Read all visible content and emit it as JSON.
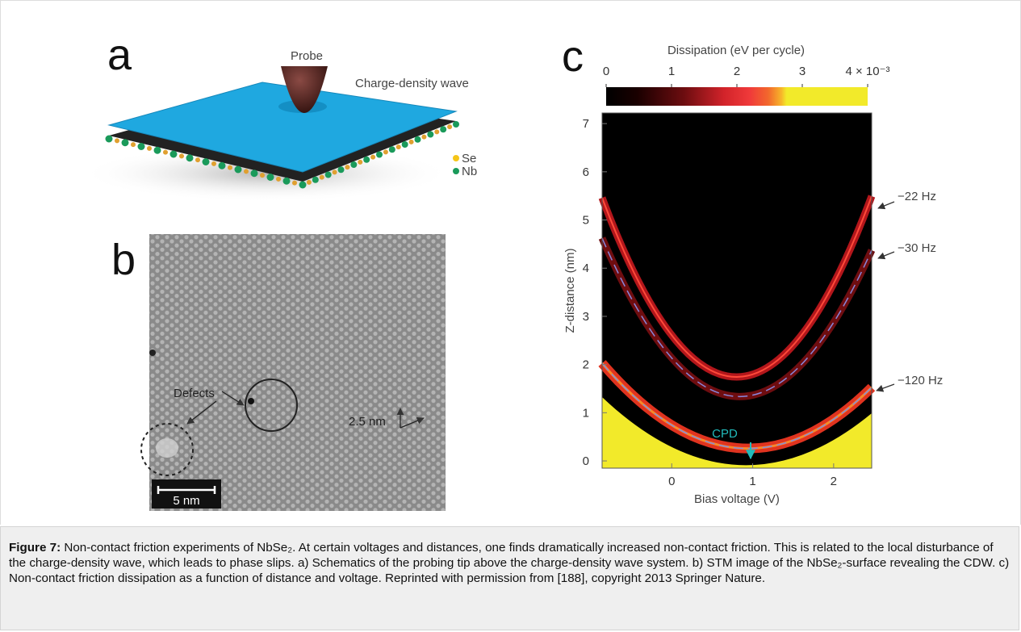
{
  "panels": {
    "a": {
      "label": "a",
      "probe": "Probe",
      "wave": "Charge-density wave",
      "legend": [
        "Se",
        "Nb"
      ]
    },
    "b": {
      "label": "b",
      "annotation": "Defects",
      "lattice": "2.5 nm",
      "scale_bar": "5 nm"
    },
    "c": {
      "label": "c",
      "colorbar": {
        "title": "Dissipation (eV per cycle)",
        "lim": [
          0,
          4
        ],
        "ticks": [
          0,
          1,
          2,
          3,
          {
            "value": 4,
            "label": "4 × 10⁻³"
          }
        ]
      },
      "xlabel": "Bias voltage (V)",
      "ylabel": "Z-distance (nm)",
      "xlim": [
        -0.86,
        2.47
      ],
      "ylim": [
        -0.15,
        7.22
      ],
      "xticks": [
        0,
        1,
        2
      ],
      "yticks": [
        0,
        1,
        2,
        3,
        4,
        5,
        6,
        7
      ],
      "annotations": [
        "−22 Hz",
        "−30 Hz",
        "−120 Hz",
        "CPD"
      ]
    }
  },
  "caption": {
    "label": "Figure 7:",
    "text": "Non-contact friction experiments of NbSe₂. At certain voltages and distances, one finds dramatically increased non-contact friction. This is related to the local disturbance of the charge-density wave, which leads to phase slips. a) Schematics of the probing tip above the charge-density wave system. b) STM image of the NbSe₂-surface revealing the CDW. c) Non-contact friction dissipation as a function of distance and voltage. Reprinted with permission from [188], copyright 2013 Springer Nature."
  }
}
